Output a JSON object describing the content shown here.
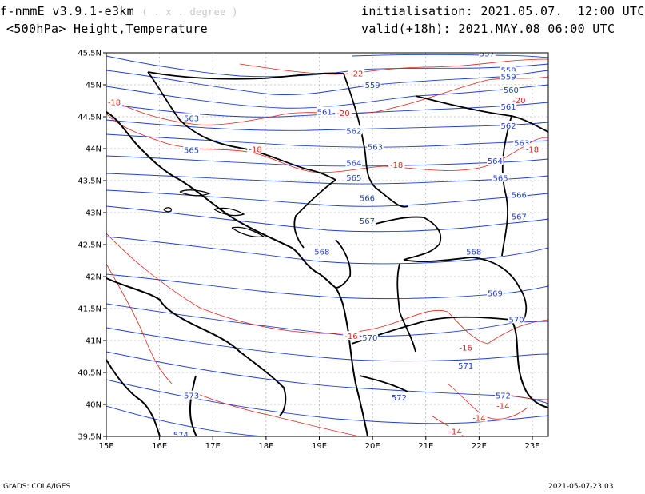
{
  "header": {
    "model": "f-nmmE_v3.9.1-e3km",
    "units": "( . x . degree )",
    "level_field": "<500hPa> Height,Temperature",
    "init_label": "initialisation:",
    "init_value": "2021.05.07.  12:00 UTC",
    "valid_label": "valid(+18h):",
    "valid_value": "2021.MAY.08 06:00 UTC"
  },
  "footer": {
    "credit": "GrADS: COLA/IGES",
    "timestamp": "2021-05-07-23:03"
  },
  "map": {
    "lon_range": [
      15,
      23.3
    ],
    "lat_range": [
      39.5,
      45.5
    ],
    "lon_ticks": [
      "15E",
      "16E",
      "17E",
      "18E",
      "19E",
      "20E",
      "21E",
      "22E",
      "23E"
    ],
    "lat_ticks": [
      "39.5N",
      "40N",
      "40.5N",
      "41N",
      "41.5N",
      "42N",
      "42.5N",
      "43N",
      "43.5N",
      "44N",
      "44.5N",
      "45N",
      "45.5N"
    ],
    "colors": {
      "height": "#1f3fd6",
      "temperature": "#e0241b",
      "coast": "#000000",
      "grid": "#9a9a9a"
    },
    "height_labels": [
      {
        "text": "557",
        "lon": 22.15,
        "lat": 45.48
      },
      {
        "text": "558",
        "lon": 22.55,
        "lat": 45.22
      },
      {
        "text": "559",
        "lon": 22.55,
        "lat": 45.12
      },
      {
        "text": "559",
        "lon": 20.0,
        "lat": 44.99
      },
      {
        "text": "560",
        "lon": 22.6,
        "lat": 44.91
      },
      {
        "text": "561",
        "lon": 22.55,
        "lat": 44.65
      },
      {
        "text": "561",
        "lon": 19.1,
        "lat": 44.57
      },
      {
        "text": "562",
        "lon": 22.55,
        "lat": 44.35
      },
      {
        "text": "562",
        "lon": 19.65,
        "lat": 44.27
      },
      {
        "text": "563",
        "lon": 16.6,
        "lat": 44.47
      },
      {
        "text": "563",
        "lon": 20.05,
        "lat": 44.02
      },
      {
        "text": "563",
        "lon": 22.8,
        "lat": 44.08
      },
      {
        "text": "564",
        "lon": 19.65,
        "lat": 43.77
      },
      {
        "text": "564",
        "lon": 22.3,
        "lat": 43.8
      },
      {
        "text": "565",
        "lon": 16.6,
        "lat": 43.97
      },
      {
        "text": "565",
        "lon": 19.65,
        "lat": 43.54
      },
      {
        "text": "565",
        "lon": 22.4,
        "lat": 43.53
      },
      {
        "text": "566",
        "lon": 19.9,
        "lat": 43.22
      },
      {
        "text": "566",
        "lon": 22.75,
        "lat": 43.27
      },
      {
        "text": "567",
        "lon": 19.9,
        "lat": 42.86
      },
      {
        "text": "567",
        "lon": 22.75,
        "lat": 42.93
      },
      {
        "text": "568",
        "lon": 19.05,
        "lat": 42.38
      },
      {
        "text": "568",
        "lon": 21.9,
        "lat": 42.38
      },
      {
        "text": "569",
        "lon": 22.3,
        "lat": 41.73
      },
      {
        "text": "570",
        "lon": 19.95,
        "lat": 41.04
      },
      {
        "text": "570",
        "lon": 22.7,
        "lat": 41.32
      },
      {
        "text": "571",
        "lon": 21.75,
        "lat": 40.6
      },
      {
        "text": "572",
        "lon": 20.5,
        "lat": 40.1
      },
      {
        "text": "572",
        "lon": 22.45,
        "lat": 40.13
      },
      {
        "text": "573",
        "lon": 16.6,
        "lat": 40.13
      },
      {
        "text": "574",
        "lon": 16.4,
        "lat": 39.52
      }
    ],
    "temp_labels": [
      {
        "text": "-22",
        "lon": 19.7,
        "lat": 45.17
      },
      {
        "text": "-20",
        "lon": 19.45,
        "lat": 44.55
      },
      {
        "text": "-20",
        "lon": 22.75,
        "lat": 44.75
      },
      {
        "text": "-18",
        "lon": 15.15,
        "lat": 44.72
      },
      {
        "text": "-18",
        "lon": 17.8,
        "lat": 43.98
      },
      {
        "text": "-18",
        "lon": 20.45,
        "lat": 43.74
      },
      {
        "text": "-18",
        "lon": 23.0,
        "lat": 43.98
      },
      {
        "text": "-16",
        "lon": 19.6,
        "lat": 41.06
      },
      {
        "text": "-16",
        "lon": 21.75,
        "lat": 40.88
      },
      {
        "text": "-14",
        "lon": 22.45,
        "lat": 39.97
      },
      {
        "text": "-14",
        "lon": 22.0,
        "lat": 39.78
      },
      {
        "text": "-14",
        "lon": 21.55,
        "lat": 39.57
      }
    ]
  }
}
